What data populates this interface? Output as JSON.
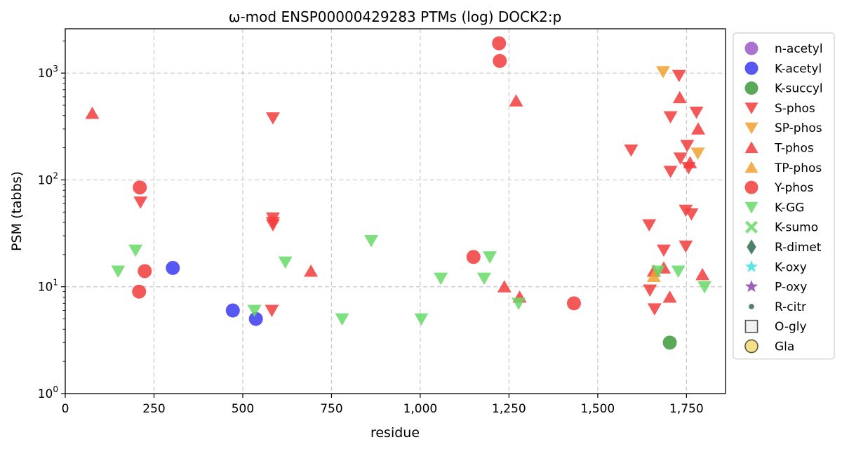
{
  "chart_data": {
    "type": "scatter",
    "title": "ω-mod ENSP00000429283 PTMs (log) DOCK2:p",
    "xlabel": "residue",
    "ylabel": "PSM (tabbs)",
    "xlim": [
      0,
      1860
    ],
    "ylim": [
      1,
      2600
    ],
    "y_scale": "log",
    "grid": true,
    "legend_position": "right",
    "x_ticks": [
      0,
      250,
      500,
      750,
      1000,
      1250,
      1500,
      1750
    ],
    "x_tick_labels": [
      "0",
      "250",
      "500",
      "750",
      "1,000",
      "1,250",
      "1,500",
      "1,750"
    ],
    "y_ticks": [
      1,
      10,
      100,
      1000
    ],
    "y_tick_labels": [
      {
        "base": "10",
        "exp": "0"
      },
      {
        "base": "10",
        "exp": "1"
      },
      {
        "base": "10",
        "exp": "2"
      },
      {
        "base": "10",
        "exp": "3"
      }
    ],
    "series": [
      {
        "name": "n-acetyl",
        "marker": "circle",
        "color": "#9b59c6",
        "points": []
      },
      {
        "name": "K-acetyl",
        "marker": "circle",
        "color": "#3a3aef",
        "points": [
          [
            303,
            15
          ],
          [
            472,
            6
          ],
          [
            537,
            5
          ]
        ]
      },
      {
        "name": "K-succyl",
        "marker": "circle",
        "color": "#3c9a3c",
        "points": [
          [
            1703,
            3
          ]
        ]
      },
      {
        "name": "S-phos",
        "marker": "triangle-down",
        "color": "#f23c3c",
        "points": [
          [
            212,
            62
          ],
          [
            585,
            380
          ],
          [
            585,
            44
          ],
          [
            585,
            40
          ],
          [
            585,
            38
          ],
          [
            582,
            6
          ],
          [
            1594,
            190
          ],
          [
            1645,
            38
          ],
          [
            1647,
            9.3
          ],
          [
            1660,
            6.2
          ],
          [
            1686,
            22
          ],
          [
            1705,
            390
          ],
          [
            1705,
            120
          ],
          [
            1729,
            950
          ],
          [
            1733,
            160
          ],
          [
            1748,
            52
          ],
          [
            1748,
            24
          ],
          [
            1752,
            210
          ],
          [
            1756,
            130
          ],
          [
            1764,
            48
          ],
          [
            1778,
            430
          ]
        ]
      },
      {
        "name": "SP-phos",
        "marker": "triangle-down",
        "color": "#f0a030",
        "points": [
          [
            1684,
            1030
          ],
          [
            1782,
            178
          ]
        ]
      },
      {
        "name": "T-phos",
        "marker": "triangle-up",
        "color": "#f23c3c",
        "points": [
          [
            76,
            420
          ],
          [
            692,
            14
          ],
          [
            1237,
            10
          ],
          [
            1270,
            550
          ],
          [
            1280,
            8
          ],
          [
            1658,
            14
          ],
          [
            1686,
            15
          ],
          [
            1703,
            8
          ],
          [
            1731,
            590
          ],
          [
            1760,
            145
          ],
          [
            1783,
            300
          ],
          [
            1795,
            13
          ]
        ]
      },
      {
        "name": "TP-phos",
        "marker": "triangle-up",
        "color": "#f0a030",
        "points": [
          [
            1658,
            12.5
          ]
        ]
      },
      {
        "name": "Y-phos",
        "marker": "circle",
        "color": "#f23c3c",
        "points": [
          [
            210,
            85
          ],
          [
            208,
            9
          ],
          [
            224,
            14
          ],
          [
            1150,
            19
          ],
          [
            1222,
            1900
          ],
          [
            1224,
            1300
          ],
          [
            1433,
            7
          ]
        ]
      },
      {
        "name": "K-GG",
        "marker": "triangle-down",
        "color": "#66d966",
        "points": [
          [
            149,
            14
          ],
          [
            198,
            22
          ],
          [
            533,
            6
          ],
          [
            620,
            17
          ],
          [
            780,
            5
          ],
          [
            862,
            27
          ],
          [
            1003,
            5
          ],
          [
            1058,
            12
          ],
          [
            1180,
            12
          ],
          [
            1196,
            19
          ],
          [
            1277,
            7
          ],
          [
            1670,
            14
          ],
          [
            1727,
            14
          ],
          [
            1801,
            10
          ]
        ]
      },
      {
        "name": "K-sumo",
        "marker": "x",
        "color": "#66d966",
        "points": []
      },
      {
        "name": "R-dimet",
        "marker": "diamond",
        "color": "#2e6b50",
        "points": []
      },
      {
        "name": "K-oxy",
        "marker": "star",
        "color": "#40e0e0",
        "points": []
      },
      {
        "name": "P-oxy",
        "marker": "star",
        "color": "#8e44ad",
        "points": []
      },
      {
        "name": "R-citr",
        "marker": "small-circle",
        "color": "#2e6b50",
        "points": []
      },
      {
        "name": "O-gly",
        "marker": "square-open",
        "color": "#555555",
        "points": []
      },
      {
        "name": "Gla",
        "marker": "circle-open",
        "color": "#f5e08a",
        "points": []
      }
    ]
  }
}
